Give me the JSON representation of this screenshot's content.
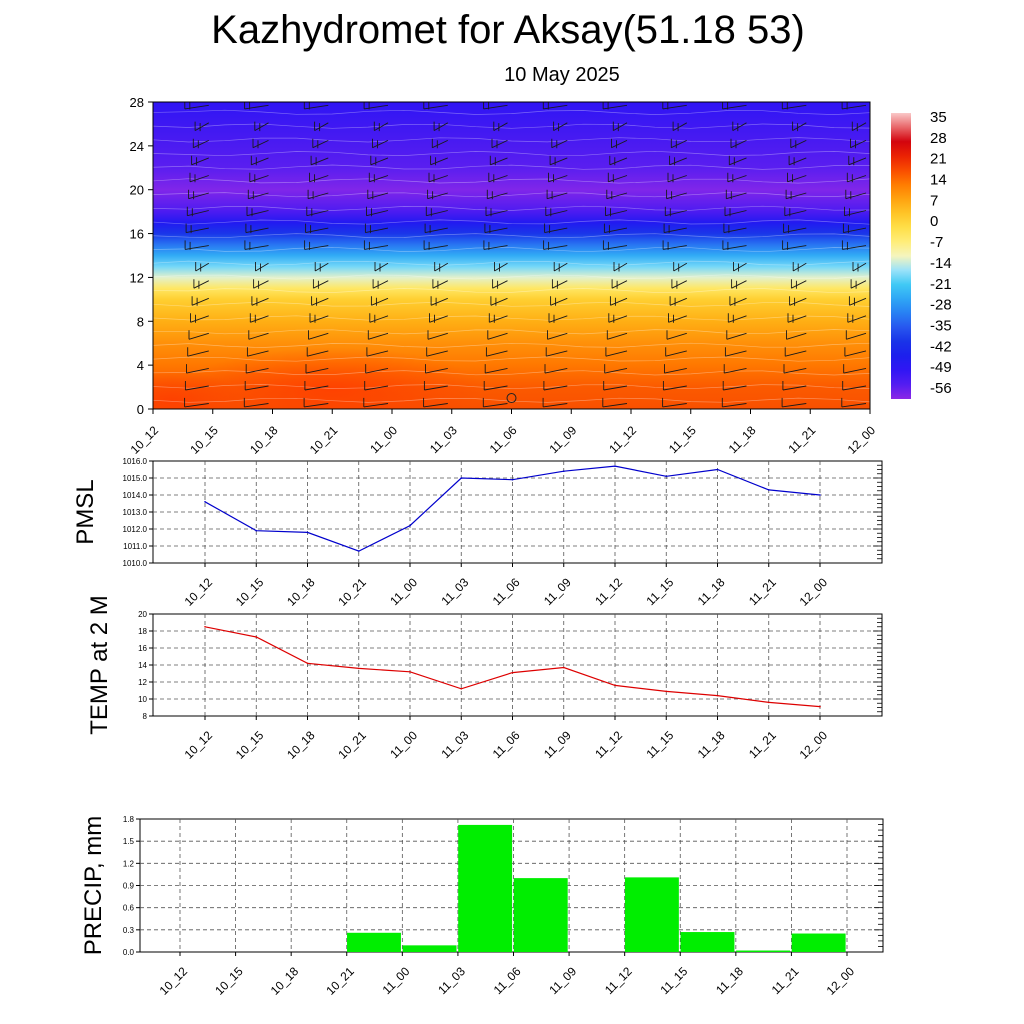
{
  "header": {
    "title": "Kazhydromet for Aksay(51.18 53)",
    "date": "10 May 2025"
  },
  "colors": {
    "pressure_line": "#0000cc",
    "temperature_line": "#dd0000",
    "precip_bar": "#00ee00"
  },
  "chart_data": [
    {
      "type": "heatmap",
      "name": "temperature-cross-section",
      "title": "",
      "xlabel": "",
      "ylabel": "",
      "x": [
        "10_12",
        "10_15",
        "10_18",
        "10_21",
        "11_00",
        "11_03",
        "11_06",
        "11_09",
        "11_12",
        "11_15",
        "11_18",
        "11_21",
        "12_00"
      ],
      "y_ticks": [
        0,
        4,
        8,
        12,
        16,
        20,
        24,
        28
      ],
      "ylim": [
        0,
        28
      ],
      "colorbar_labels": [
        "35",
        "28",
        "21",
        "14",
        "7",
        "0",
        "-7",
        "-14",
        "-21",
        "-28",
        "-35",
        "-42",
        "-49",
        "-56"
      ],
      "colorbar_range": [
        -60,
        38
      ],
      "temperature_profile": [
        {
          "level": 0,
          "value": 18
        },
        {
          "level": 2,
          "value": 17
        },
        {
          "level": 4,
          "value": 14
        },
        {
          "level": 6,
          "value": 11
        },
        {
          "level": 8,
          "value": 7
        },
        {
          "level": 10,
          "value": 2
        },
        {
          "level": 11,
          "value": -4
        },
        {
          "level": 12,
          "value": -12
        },
        {
          "level": 13,
          "value": -18
        },
        {
          "level": 14,
          "value": -25
        },
        {
          "level": 15,
          "value": -32
        },
        {
          "level": 16,
          "value": -40
        },
        {
          "level": 17,
          "value": -47
        },
        {
          "level": 18,
          "value": -54
        },
        {
          "level": 20,
          "value": -59
        },
        {
          "level": 22,
          "value": -56
        },
        {
          "level": 24,
          "value": -54
        },
        {
          "level": 26,
          "value": -52
        },
        {
          "level": 28,
          "value": -50
        }
      ],
      "wind_barbs": "shown"
    },
    {
      "type": "line",
      "name": "pmsl",
      "ylabel": "PMSL",
      "categories": [
        "10_12",
        "10_15",
        "10_18",
        "10_21",
        "11_00",
        "11_03",
        "11_06",
        "11_09",
        "11_12",
        "11_15",
        "11_18",
        "11_21",
        "12_00"
      ],
      "values": [
        1013.6,
        1011.9,
        1011.8,
        1010.7,
        1012.2,
        1015.0,
        1014.9,
        1015.4,
        1015.7,
        1015.1,
        1015.5,
        1014.3,
        1014.0
      ],
      "ylim": [
        1010,
        1016
      ],
      "y_ticks": [
        "1010.0",
        "1011.0",
        "1012.0",
        "1013.0",
        "1014.0",
        "1015.0",
        "1016.0"
      ],
      "grid": true
    },
    {
      "type": "line",
      "name": "temp-2m",
      "ylabel": "TEMP at 2 M",
      "categories": [
        "10_12",
        "10_15",
        "10_18",
        "10_21",
        "11_00",
        "11_03",
        "11_06",
        "11_09",
        "11_12",
        "11_15",
        "11_18",
        "11_21",
        "12_00"
      ],
      "values": [
        18.5,
        17.3,
        14.2,
        13.6,
        13.2,
        11.2,
        13.1,
        13.7,
        11.6,
        10.9,
        10.4,
        9.6,
        9.1
      ],
      "ylim": [
        8,
        20
      ],
      "y_ticks": [
        "8",
        "10",
        "12",
        "14",
        "16",
        "18",
        "20"
      ],
      "grid": true
    },
    {
      "type": "bar",
      "name": "precip",
      "ylabel": "PRECIP, mm",
      "categories": [
        "10_12",
        "10_15",
        "10_18",
        "10_21",
        "11_00",
        "11_03",
        "11_06",
        "11_09",
        "11_12",
        "11_15",
        "11_18",
        "11_21",
        "12_00"
      ],
      "values": [
        0,
        0,
        0,
        0,
        0.26,
        0.09,
        1.72,
        1.0,
        0,
        1.01,
        0.27,
        0.02,
        0.25
      ],
      "ylim": [
        0,
        1.8
      ],
      "y_ticks": [
        "0.0",
        "0.3",
        "0.6",
        "0.9",
        "1.2",
        "1.5",
        "1.8"
      ],
      "grid": true
    }
  ]
}
